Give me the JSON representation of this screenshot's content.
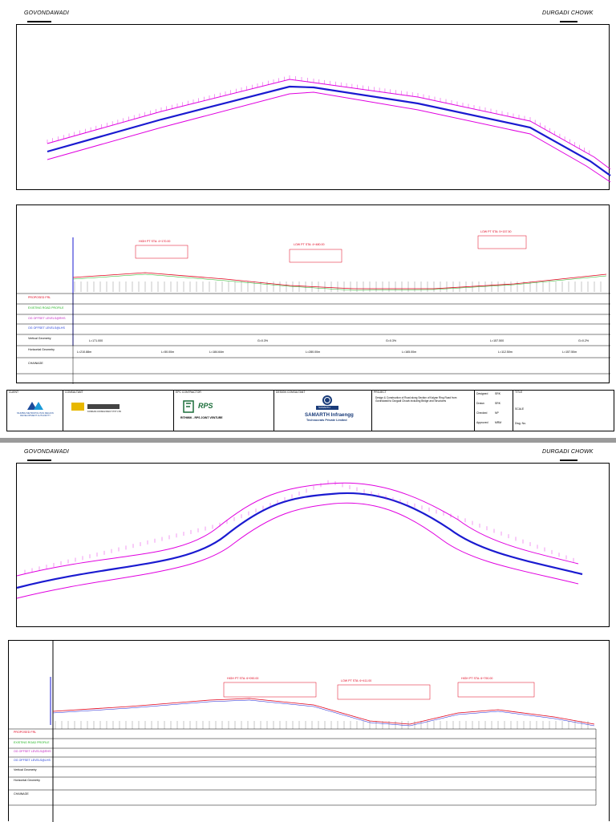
{
  "sheet_top": {
    "place_left": "GOVONDAWADI",
    "place_right": "DURGADI CHOWK",
    "profile_rows": [
      {
        "label": "PROPOSED FRL",
        "color": "#e0001b"
      },
      {
        "label": "EXISTING ROAD PROFILE",
        "color": "#1fb31f"
      },
      {
        "label": "OG OFFSET LEVELS@RHS",
        "color": "#c020c0"
      },
      {
        "label": "OG OFFSET LEVELS@LHS",
        "color": "#1a38d8"
      },
      {
        "label": "Vertical Geometry",
        "color": "#000000"
      },
      {
        "label": "Horizontal Geometry",
        "color": "#000000"
      },
      {
        "label": "CHAINAGE",
        "color": "#000000"
      }
    ],
    "vertical_geometry": [
      "L=171.000",
      "G=0.3%",
      "G=0.3%",
      "L=157.500",
      "G=0.2%"
    ],
    "horizontal_geometry": [
      "L=210.88m",
      "L=50.00m",
      "L=184.64m",
      "L=280.00m",
      "L=165.00m",
      "L=112.50m",
      "L=157.50m"
    ],
    "annotations": [
      "HIGH PT STA: 4+170.00",
      "LOW PT STA: 4+480.00",
      "LOW PT STA: 5+157.50"
    ],
    "title_block": {
      "client_label": "CLIENT",
      "client_name": "MUMBAI METROPOLITAN REGION DEVELOPMENT AUTHORITY",
      "consultant_label": "CONSULTANT",
      "consultant_name": "KONKAN CONSULTANCY PVT LTD",
      "contractor_label": "EPC CONTRACTOR",
      "jv_name": "RITHWIK - RPS JOINT VENTURE",
      "rps_logo": "RPS",
      "design_consultant_label": "DESIGN CONSULTANT",
      "samarth_logo": "SAMARTH",
      "samarth_name": "SAMARTH Infraengg",
      "samarth_sub": "Technocrats Private Limited",
      "project_label": "PROJECT",
      "project_text": "Design & Construction of Road along Section of Kalyan Ring Road from Govindwadi to Durgadi Chowk including Bridge and Structures",
      "designed_label": "Designed",
      "designed_val": "SRK",
      "drawn_label": "Drawn",
      "drawn_val": "SRK",
      "checked_label": "Checked",
      "checked_val": "NP",
      "approved_label": "Approved",
      "approved_val": "MRM",
      "title_label": "TITLE",
      "scale_label": "SCALE",
      "dwg_label": "Dwg. No."
    }
  },
  "sheet_bottom": {
    "place_left": "GOVONDAWADI",
    "place_right": "DURGADI CHOWK",
    "profile_rows": [
      {
        "label": "PROPOSED FRL",
        "color": "#e0001b"
      },
      {
        "label": "EXISTING ROAD PROFILE",
        "color": "#1fb31f"
      },
      {
        "label": "OG OFFSET LEVELS@RHS",
        "color": "#c020c0"
      },
      {
        "label": "OG OFFSET LEVELS@LHS",
        "color": "#1a38d8"
      },
      {
        "label": "Vertical Geometry",
        "color": "#000000"
      },
      {
        "label": "Horizontal Geometry",
        "color": "#000000"
      },
      {
        "label": "CHAINAGE",
        "color": "#000000"
      }
    ],
    "annotations": [
      "HIGH PT STA: 6+090.00",
      "LOW PT STA: 6+411.00",
      "HIGH PT STA: 6+790.00"
    ]
  },
  "colors": {
    "alignment": "#1a1ad0",
    "edge": "#e000e0",
    "frl": "#e0001b",
    "existing": "#1fb31f"
  }
}
